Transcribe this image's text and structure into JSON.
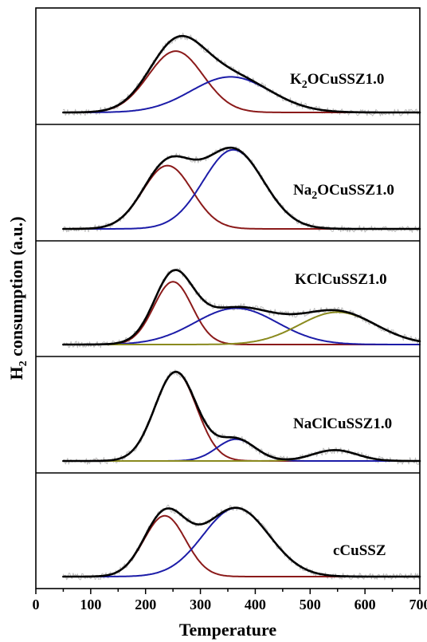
{
  "chart_data": {
    "type": "line",
    "xlabel": "Temperature",
    "ylabel_main": "H",
    "ylabel_sub": "2",
    "ylabel_rest": " consumption (a.u.)",
    "xlim": [
      0,
      700
    ],
    "xticks": [
      0,
      100,
      200,
      300,
      400,
      500,
      600,
      700
    ],
    "colors": {
      "total": "#000000",
      "peak1": "#8b1a1a",
      "peak2": "#1c1ca8",
      "peak3": "#8a8a1e",
      "raw": "#bdbdbd"
    },
    "panels": [
      {
        "label_pre": "K",
        "label_sub": "2",
        "label_post": "OCuSSZ1.0",
        "peaks": [
          {
            "series": "peak1",
            "center": 255,
            "height": 0.62,
            "width": 50
          },
          {
            "series": "peak2",
            "center": 355,
            "height": 0.36,
            "width": 72
          }
        ]
      },
      {
        "label_pre": "Na",
        "label_sub": "2",
        "label_post": "OCuSSZ1.0",
        "peaks": [
          {
            "series": "peak1",
            "center": 240,
            "height": 0.64,
            "width": 45
          },
          {
            "series": "peak2",
            "center": 360,
            "height": 0.8,
            "width": 55
          }
        ]
      },
      {
        "label_pre": "KClCuSSZ1.0",
        "label_sub": "",
        "label_post": "",
        "peaks": [
          {
            "series": "peak1",
            "center": 250,
            "height": 0.64,
            "width": 35
          },
          {
            "series": "peak2",
            "center": 365,
            "height": 0.37,
            "width": 75
          },
          {
            "series": "peak3",
            "center": 550,
            "height": 0.33,
            "width": 70
          }
        ]
      },
      {
        "label_pre": "NaClCuSSZ1.0",
        "label_sub": "",
        "label_post": "",
        "peaks": [
          {
            "series": "peak1",
            "center": 255,
            "height": 0.9,
            "width": 38
          },
          {
            "series": "peak2",
            "center": 365,
            "height": 0.22,
            "width": 35
          },
          {
            "series": "peak3",
            "center": 545,
            "height": 0.11,
            "width": 40
          }
        ]
      },
      {
        "label_pre": "cCuSSZ",
        "label_sub": "",
        "label_post": "",
        "peaks": [
          {
            "series": "peak1",
            "center": 235,
            "height": 0.62,
            "width": 38
          },
          {
            "series": "peak2",
            "center": 365,
            "height": 0.7,
            "width": 60
          }
        ]
      }
    ]
  }
}
